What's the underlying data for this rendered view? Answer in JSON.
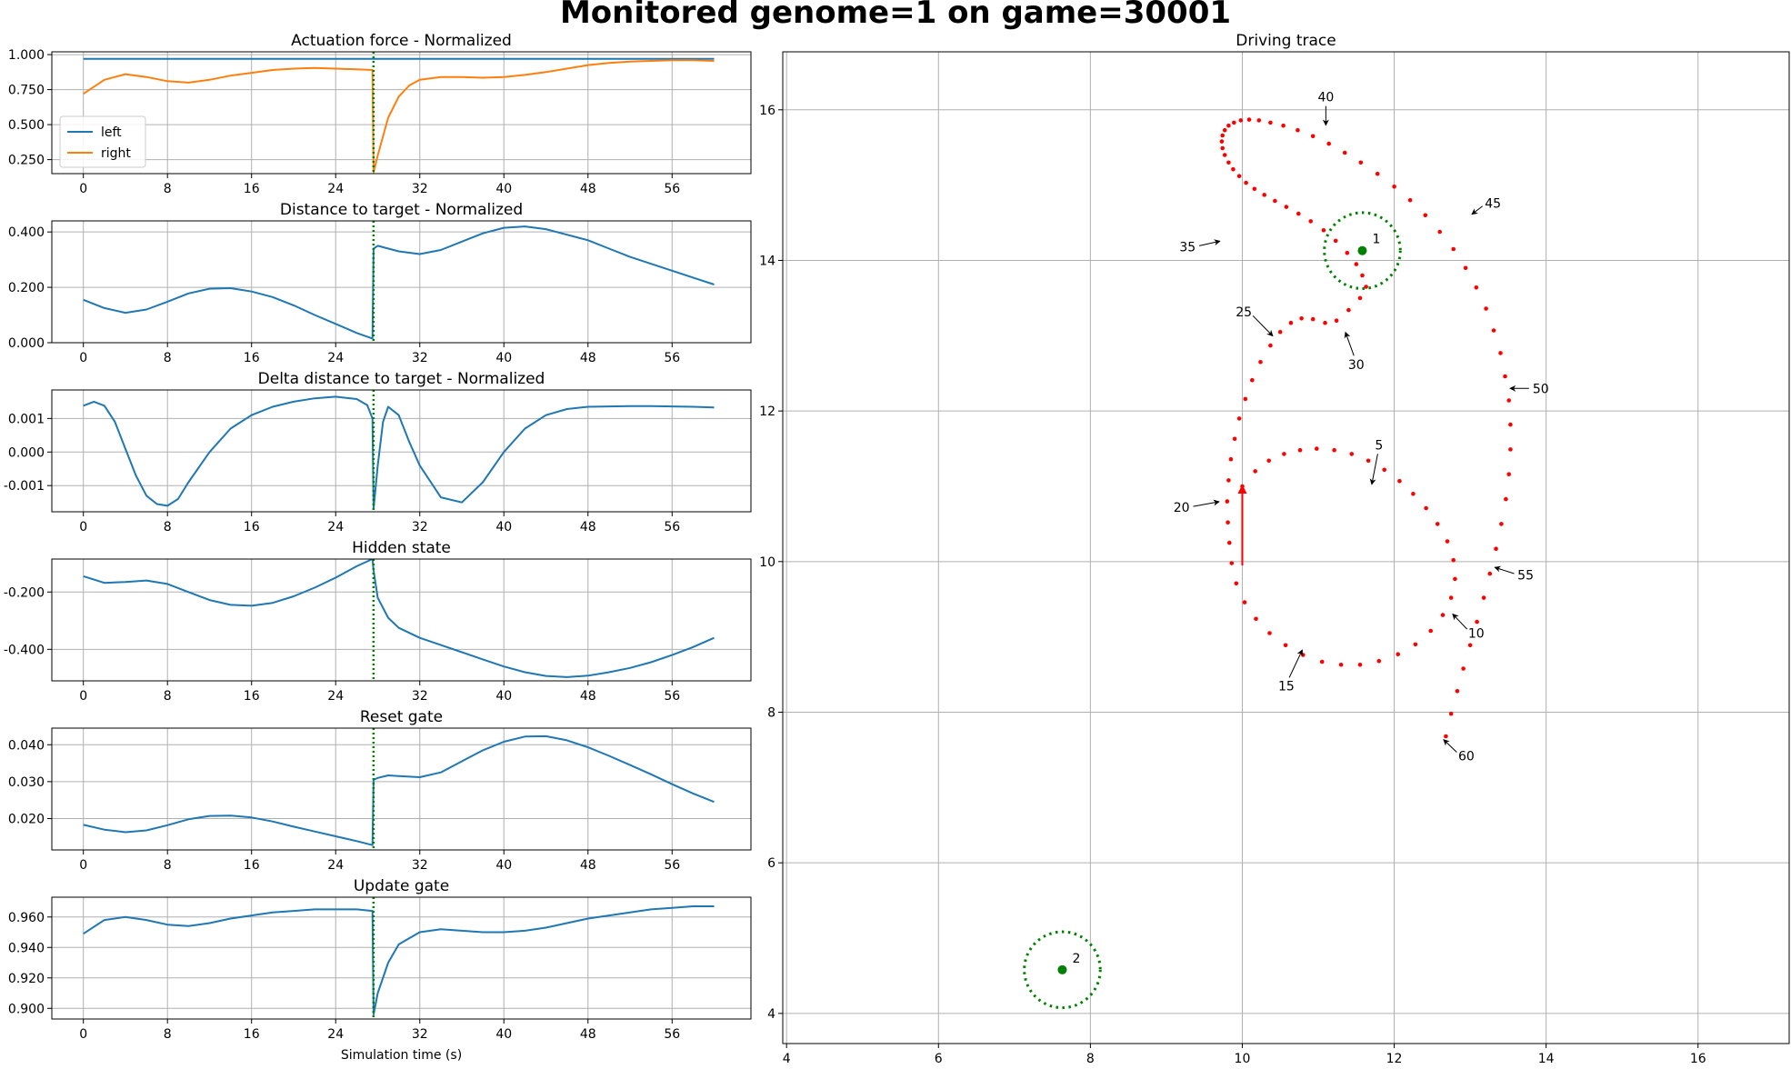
{
  "suptitle": "Monitored genome=1 on game=30001",
  "colors": {
    "left": "#1f77b4",
    "right": "#ff7f0e",
    "trace": "#ff0000",
    "target": "#008000",
    "grid": "#b0b0b0"
  },
  "chart_data": [
    {
      "type": "line",
      "title": "Actuation force - Normalized",
      "xlabel": "",
      "ylabel": "",
      "xticks": [
        0,
        8,
        16,
        24,
        32,
        40,
        48,
        56
      ],
      "yticks": [
        0.25,
        0.5,
        0.75,
        1.0
      ],
      "ytick_labels": [
        "0.250",
        "0.500",
        "0.750",
        "1.000"
      ],
      "xlim": [
        -3,
        63.5
      ],
      "ylim": [
        0.15,
        1.02
      ],
      "grid": true,
      "legend": "lower-left",
      "vline": 27.6,
      "x": [
        0,
        2,
        4,
        6,
        8,
        10,
        12,
        14,
        16,
        18,
        20,
        22,
        24,
        26,
        27.5,
        27.6,
        28,
        29,
        30,
        31,
        32,
        34,
        36,
        38,
        40,
        42,
        44,
        46,
        48,
        50,
        52,
        54,
        56,
        58,
        60
      ],
      "series": [
        {
          "name": "left",
          "values": [
            0.97,
            0.97,
            0.97,
            0.97,
            0.97,
            0.97,
            0.97,
            0.97,
            0.97,
            0.97,
            0.97,
            0.97,
            0.97,
            0.97,
            0.97,
            0.97,
            0.97,
            0.97,
            0.97,
            0.97,
            0.97,
            0.97,
            0.97,
            0.97,
            0.97,
            0.97,
            0.97,
            0.97,
            0.97,
            0.97,
            0.97,
            0.97,
            0.97,
            0.97,
            0.97
          ]
        },
        {
          "name": "right",
          "values": [
            0.72,
            0.82,
            0.86,
            0.84,
            0.81,
            0.8,
            0.82,
            0.85,
            0.87,
            0.89,
            0.9,
            0.905,
            0.9,
            0.895,
            0.89,
            0.16,
            0.28,
            0.55,
            0.7,
            0.78,
            0.82,
            0.84,
            0.84,
            0.835,
            0.84,
            0.855,
            0.875,
            0.9,
            0.925,
            0.94,
            0.95,
            0.955,
            0.96,
            0.96,
            0.955
          ]
        }
      ]
    },
    {
      "type": "line",
      "title": "Distance to target - Normalized",
      "xlabel": "",
      "ylabel": "",
      "xticks": [
        0,
        8,
        16,
        24,
        32,
        40,
        48,
        56
      ],
      "yticks": [
        0.0,
        0.2,
        0.4
      ],
      "ytick_labels": [
        "0.000",
        "0.200",
        "0.400"
      ],
      "xlim": [
        -3,
        63.5
      ],
      "ylim": [
        0.0,
        0.44
      ],
      "grid": true,
      "vline": 27.6,
      "x": [
        0,
        2,
        4,
        6,
        8,
        10,
        12,
        14,
        16,
        18,
        20,
        22,
        24,
        26,
        27.5,
        27.6,
        28,
        30,
        32,
        34,
        36,
        38,
        40,
        42,
        44,
        46,
        48,
        50,
        52,
        54,
        56,
        58,
        60
      ],
      "series": [
        {
          "name": "",
          "values": [
            0.155,
            0.125,
            0.108,
            0.12,
            0.148,
            0.178,
            0.195,
            0.197,
            0.185,
            0.165,
            0.135,
            0.1,
            0.068,
            0.035,
            0.015,
            0.34,
            0.35,
            0.33,
            0.32,
            0.335,
            0.365,
            0.395,
            0.415,
            0.42,
            0.41,
            0.39,
            0.37,
            0.34,
            0.31,
            0.285,
            0.26,
            0.235,
            0.21
          ]
        }
      ]
    },
    {
      "type": "line",
      "title": "Delta distance to target - Normalized",
      "xlabel": "",
      "ylabel": "",
      "xticks": [
        0,
        8,
        16,
        24,
        32,
        40,
        48,
        56
      ],
      "yticks": [
        -0.001,
        0.0,
        0.001
      ],
      "ytick_labels": [
        "-0.001",
        "0.000",
        "0.001"
      ],
      "xlim": [
        -3,
        63.5
      ],
      "ylim": [
        -0.00178,
        0.00185
      ],
      "grid": true,
      "vline": 27.6,
      "x": [
        0,
        1,
        2,
        3,
        4,
        5,
        6,
        7,
        8,
        9,
        10,
        12,
        14,
        16,
        18,
        20,
        22,
        24,
        26,
        27,
        27.5,
        27.6,
        28,
        28.5,
        29,
        30,
        31,
        32,
        34,
        36,
        38,
        40,
        42,
        44,
        46,
        48,
        50,
        52,
        54,
        56,
        58,
        60
      ],
      "series": [
        {
          "name": "",
          "values": [
            0.00138,
            0.0015,
            0.00138,
            0.0009,
            0.0001,
            -0.0007,
            -0.0013,
            -0.00155,
            -0.0016,
            -0.0014,
            -0.0009,
            0.0,
            0.0007,
            0.0011,
            0.00135,
            0.0015,
            0.0016,
            0.00165,
            0.00158,
            0.0014,
            0.001,
            -0.0017,
            -0.0004,
            0.0009,
            0.00135,
            0.0011,
            0.0003,
            -0.0004,
            -0.00135,
            -0.0015,
            -0.0009,
            0.0,
            0.0007,
            0.0011,
            0.00128,
            0.00135,
            0.00136,
            0.00137,
            0.00137,
            0.00136,
            0.00135,
            0.00133
          ]
        }
      ]
    },
    {
      "type": "line",
      "title": "Hidden state",
      "xlabel": "",
      "ylabel": "",
      "xticks": [
        0,
        8,
        16,
        24,
        32,
        40,
        48,
        56
      ],
      "yticks": [
        -0.4,
        -0.2
      ],
      "ytick_labels": [
        "-0.400",
        "-0.200"
      ],
      "xlim": [
        -3,
        63.5
      ],
      "ylim": [
        -0.51,
        -0.085
      ],
      "grid": true,
      "vline": 27.6,
      "x": [
        0,
        2,
        4,
        6,
        8,
        10,
        12,
        14,
        16,
        18,
        20,
        22,
        24,
        26,
        27.5,
        27.6,
        28,
        29,
        30,
        32,
        34,
        36,
        38,
        40,
        42,
        44,
        46,
        48,
        50,
        52,
        54,
        56,
        58,
        60
      ],
      "series": [
        {
          "name": "",
          "values": [
            -0.145,
            -0.168,
            -0.165,
            -0.16,
            -0.172,
            -0.2,
            -0.228,
            -0.245,
            -0.248,
            -0.238,
            -0.215,
            -0.185,
            -0.15,
            -0.11,
            -0.085,
            -0.125,
            -0.22,
            -0.29,
            -0.325,
            -0.36,
            -0.385,
            -0.41,
            -0.435,
            -0.46,
            -0.48,
            -0.493,
            -0.497,
            -0.492,
            -0.48,
            -0.465,
            -0.445,
            -0.42,
            -0.392,
            -0.36
          ]
        }
      ]
    },
    {
      "type": "line",
      "title": "Reset gate",
      "xlabel": "",
      "ylabel": "",
      "xticks": [
        0,
        8,
        16,
        24,
        32,
        40,
        48,
        56
      ],
      "yticks": [
        0.02,
        0.03,
        0.04
      ],
      "ytick_labels": [
        "0.020",
        "0.030",
        "0.040"
      ],
      "xlim": [
        -3,
        63.5
      ],
      "ylim": [
        0.0115,
        0.0445
      ],
      "grid": true,
      "vline": 27.6,
      "x": [
        0,
        2,
        4,
        6,
        8,
        10,
        12,
        14,
        16,
        18,
        20,
        22,
        24,
        26,
        27.5,
        27.6,
        28,
        29,
        30,
        32,
        34,
        36,
        38,
        40,
        42,
        44,
        46,
        48,
        50,
        52,
        54,
        56,
        58,
        60
      ],
      "series": [
        {
          "name": "",
          "values": [
            0.0183,
            0.017,
            0.0163,
            0.0168,
            0.0182,
            0.0198,
            0.0207,
            0.0208,
            0.0203,
            0.0192,
            0.0178,
            0.0165,
            0.0152,
            0.0139,
            0.0128,
            0.0305,
            0.031,
            0.0317,
            0.0315,
            0.0312,
            0.0325,
            0.0355,
            0.0385,
            0.0408,
            0.0422,
            0.0423,
            0.0412,
            0.0393,
            0.037,
            0.0345,
            0.032,
            0.0293,
            0.0268,
            0.0245
          ]
        }
      ]
    },
    {
      "type": "line",
      "title": "Update gate",
      "xlabel": "Simulation time (s)",
      "ylabel": "",
      "xticks": [
        0,
        8,
        16,
        24,
        32,
        40,
        48,
        56
      ],
      "yticks": [
        0.9,
        0.92,
        0.94,
        0.96
      ],
      "ytick_labels": [
        "0.900",
        "0.920",
        "0.940",
        "0.960"
      ],
      "xlim": [
        -3,
        63.5
      ],
      "ylim": [
        0.893,
        0.973
      ],
      "grid": true,
      "vline": 27.6,
      "x": [
        0,
        2,
        4,
        6,
        8,
        10,
        12,
        14,
        16,
        18,
        20,
        22,
        24,
        26,
        27.5,
        27.6,
        28,
        29,
        30,
        32,
        34,
        36,
        38,
        40,
        42,
        44,
        46,
        48,
        50,
        52,
        54,
        56,
        58,
        60
      ],
      "series": [
        {
          "name": "",
          "values": [
            0.949,
            0.958,
            0.96,
            0.958,
            0.955,
            0.954,
            0.956,
            0.959,
            0.961,
            0.963,
            0.964,
            0.965,
            0.965,
            0.965,
            0.964,
            0.896,
            0.91,
            0.93,
            0.942,
            0.95,
            0.952,
            0.951,
            0.95,
            0.95,
            0.951,
            0.953,
            0.956,
            0.959,
            0.961,
            0.963,
            0.965,
            0.966,
            0.967,
            0.967
          ]
        }
      ]
    },
    {
      "type": "scatter",
      "title": "Driving trace",
      "xlabel": "",
      "ylabel": "",
      "xticks": [
        4,
        6,
        8,
        10,
        12,
        14,
        16
      ],
      "yticks": [
        4,
        6,
        8,
        10,
        12,
        14,
        16
      ],
      "xlim": [
        3.95,
        17.2
      ],
      "ylim": [
        3.6,
        16.77
      ],
      "grid": true,
      "targets": [
        {
          "label": "1",
          "x": 11.58,
          "y": 14.13,
          "radius": 0.5
        },
        {
          "label": "2",
          "x": 7.63,
          "y": 4.58,
          "radius": 0.5
        }
      ],
      "start_arrow": {
        "from": [
          10.0,
          9.95
        ],
        "to": [
          10.0,
          11.0
        ]
      },
      "trace_x": [
        10.0,
        10.17,
        10.35,
        10.55,
        10.76,
        10.98,
        11.21,
        11.44,
        11.66,
        11.87,
        12.07,
        12.25,
        12.42,
        12.57,
        12.7,
        12.78,
        12.8,
        12.75,
        12.64,
        12.48,
        12.28,
        12.05,
        11.8,
        11.55,
        11.3,
        11.05,
        10.8,
        10.57,
        10.36,
        10.18,
        10.03,
        9.92,
        9.86,
        9.83,
        9.81,
        9.8,
        9.82,
        9.85,
        9.9,
        9.96,
        10.04,
        10.13,
        10.24,
        10.37,
        10.5,
        10.64,
        10.78,
        10.93,
        11.09,
        11.24,
        11.4,
        11.55,
        11.63,
        11.58,
        11.5,
        11.38,
        11.23,
        11.07,
        10.9,
        10.74,
        10.58,
        10.43,
        10.29,
        10.16,
        10.05,
        9.96,
        9.88,
        9.82,
        9.77,
        9.74,
        9.73,
        9.74,
        9.77,
        9.82,
        9.89,
        9.98,
        10.09,
        10.22,
        10.37,
        10.54,
        10.73,
        10.93,
        11.14,
        11.35,
        11.56,
        11.78,
        12.0,
        12.21,
        12.41,
        12.6,
        12.78,
        12.94,
        13.08,
        13.21,
        13.31,
        13.4,
        13.46,
        13.51,
        13.53,
        13.53,
        13.51,
        13.47,
        13.41,
        13.34,
        13.26,
        13.18,
        13.09,
        13.0,
        12.91,
        12.83,
        12.75,
        12.68
      ],
      "trace_y": [
        11.0,
        11.2,
        11.34,
        11.43,
        11.48,
        11.5,
        11.48,
        11.43,
        11.34,
        11.22,
        11.07,
        10.9,
        10.71,
        10.5,
        10.27,
        10.02,
        9.77,
        9.52,
        9.29,
        9.08,
        8.9,
        8.77,
        8.68,
        8.63,
        8.63,
        8.67,
        8.76,
        8.89,
        9.05,
        9.24,
        9.46,
        9.71,
        9.98,
        10.25,
        10.52,
        10.8,
        11.08,
        11.36,
        11.63,
        11.9,
        12.16,
        12.41,
        12.65,
        12.87,
        13.05,
        13.17,
        13.23,
        13.22,
        13.17,
        13.2,
        13.34,
        13.5,
        13.65,
        13.8,
        13.95,
        14.1,
        14.26,
        14.4,
        14.52,
        14.62,
        14.71,
        14.79,
        14.87,
        14.95,
        15.03,
        15.12,
        15.21,
        15.3,
        15.4,
        15.49,
        15.58,
        15.66,
        15.73,
        15.79,
        15.83,
        15.86,
        15.87,
        15.86,
        15.83,
        15.79,
        15.73,
        15.65,
        15.55,
        15.43,
        15.3,
        15.15,
        14.98,
        14.8,
        14.6,
        14.38,
        14.15,
        13.9,
        13.64,
        13.36,
        13.07,
        12.77,
        12.46,
        12.14,
        11.82,
        11.49,
        11.16,
        10.83,
        10.5,
        10.17,
        9.84,
        9.52,
        9.2,
        8.89,
        8.58,
        8.28,
        7.98,
        7.68
      ],
      "annotations": [
        {
          "text": "5",
          "point": [
            11.7,
            11.0
          ],
          "label_at": [
            11.8,
            11.55
          ]
        },
        {
          "text": "10",
          "point": [
            12.75,
            9.32
          ],
          "label_at": [
            13.08,
            9.05
          ]
        },
        {
          "text": "15",
          "point": [
            10.8,
            8.85
          ],
          "label_at": [
            10.58,
            8.35
          ]
        },
        {
          "text": "20",
          "point": [
            9.72,
            10.8
          ],
          "label_at": [
            9.2,
            10.72
          ]
        },
        {
          "text": "25",
          "point": [
            10.42,
            12.98
          ],
          "label_at": [
            10.02,
            13.32
          ]
        },
        {
          "text": "30",
          "point": [
            11.35,
            13.07
          ],
          "label_at": [
            11.5,
            12.62
          ]
        },
        {
          "text": "35",
          "point": [
            9.73,
            14.26
          ],
          "label_at": [
            9.28,
            14.18
          ]
        },
        {
          "text": "40",
          "point": [
            11.1,
            15.77
          ],
          "label_at": [
            11.1,
            16.17
          ]
        },
        {
          "text": "45",
          "point": [
            13.0,
            14.6
          ],
          "label_at": [
            13.3,
            14.76
          ]
        },
        {
          "text": "50",
          "point": [
            13.5,
            12.3
          ],
          "label_at": [
            13.93,
            12.3
          ]
        },
        {
          "text": "55",
          "point": [
            13.3,
            9.93
          ],
          "label_at": [
            13.73,
            9.82
          ]
        },
        {
          "text": "60",
          "point": [
            12.63,
            7.65
          ],
          "label_at": [
            12.95,
            7.42
          ]
        }
      ]
    }
  ]
}
